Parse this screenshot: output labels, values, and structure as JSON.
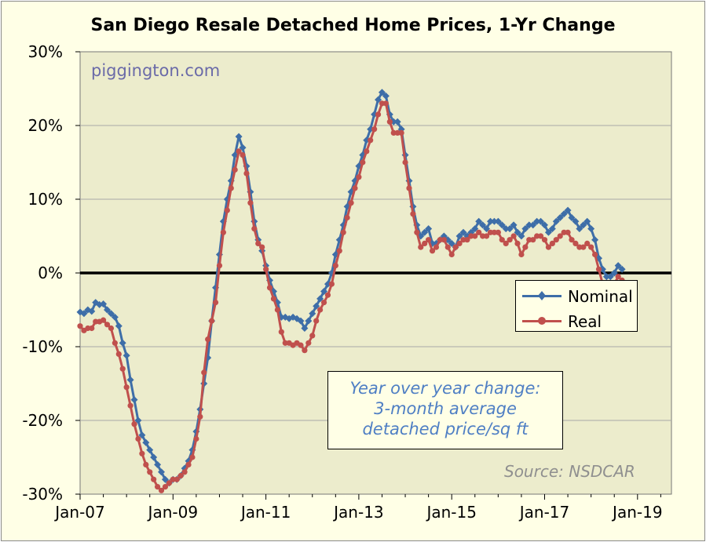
{
  "chart_data": {
    "type": "line",
    "title": "San Diego Resale Detached Home Prices, 1-Yr Change",
    "watermark": "piggington.com",
    "source": "Source: NSDCAR",
    "note_lines": [
      "Year over year change:",
      "3-month average",
      "detached price/sq ft"
    ],
    "x_ticks": [
      "Jan-07",
      "Jan-09",
      "Jan-11",
      "Jan-13",
      "Jan-15",
      "Jan-17",
      "Jan-19"
    ],
    "y_ticks": [
      "30%",
      "20%",
      "10%",
      "0%",
      "-10%",
      "-20%",
      "-30%"
    ],
    "ylim": [
      -30,
      30
    ],
    "x_start": "Jan-07",
    "x_end": "Aug-19",
    "grid": true,
    "legend_position": "right",
    "colors": {
      "nominal": "#3e6ea8",
      "real": "#c0504d",
      "zero_line": "#000000",
      "plot_bg": "#ececcc",
      "grid": "#a8a8a8"
    },
    "series": [
      {
        "name": "Nominal",
        "marker": "diamond",
        "values": [
          -5.3,
          -5.5,
          -5.0,
          -5.2,
          -4.0,
          -4.3,
          -4.2,
          -5.0,
          -5.5,
          -6.0,
          -7.2,
          -9.5,
          -11.2,
          -14.5,
          -17.2,
          -20.0,
          -22.0,
          -23.0,
          -24.0,
          -25.0,
          -26.0,
          -27.0,
          -28.0,
          -28.5,
          -28.0,
          -28.0,
          -27.5,
          -26.5,
          -25.5,
          -24.0,
          -21.5,
          -18.5,
          -15.0,
          -11.5,
          -6.5,
          -2.0,
          2.5,
          7.0,
          10.0,
          12.5,
          16.0,
          18.5,
          17.0,
          14.5,
          11.0,
          7.0,
          4.5,
          3.0,
          1.0,
          -1.0,
          -2.5,
          -4.0,
          -6.0,
          -6.0,
          -6.2,
          -6.0,
          -6.2,
          -6.5,
          -7.5,
          -6.5,
          -5.5,
          -4.5,
          -3.5,
          -2.5,
          -1.5,
          0.0,
          2.5,
          4.5,
          6.5,
          9.0,
          11.0,
          12.5,
          14.5,
          16.0,
          18.0,
          19.5,
          21.5,
          23.5,
          24.5,
          24.0,
          21.5,
          20.5,
          20.5,
          19.5,
          16.0,
          12.5,
          9.0,
          6.5,
          5.0,
          5.5,
          6.0,
          4.0,
          4.0,
          4.5,
          5.0,
          4.5,
          4.0,
          3.5,
          5.0,
          5.5,
          5.0,
          5.5,
          6.0,
          7.0,
          6.5,
          6.0,
          7.0,
          7.0,
          7.0,
          6.5,
          6.0,
          6.0,
          6.5,
          5.5,
          5.0,
          6.0,
          6.5,
          6.5,
          7.0,
          7.0,
          6.5,
          5.5,
          6.0,
          7.0,
          7.5,
          8.0,
          8.5,
          7.5,
          7.0,
          6.0,
          6.5,
          7.0,
          6.0,
          4.5,
          2.0,
          0.5,
          -0.5,
          -0.5,
          0.0,
          1.0,
          0.5
        ]
      },
      {
        "name": "Real",
        "marker": "circle",
        "values": [
          -7.2,
          -7.8,
          -7.5,
          -7.5,
          -6.6,
          -6.6,
          -6.4,
          -7.0,
          -7.5,
          -9.5,
          -11.0,
          -13.0,
          -15.5,
          -18.0,
          -20.5,
          -22.5,
          -24.5,
          -26.0,
          -27.0,
          -28.0,
          -29.0,
          -29.5,
          -29.0,
          -28.5,
          -28.0,
          -28.0,
          -27.5,
          -27.0,
          -26.0,
          -25.0,
          -22.5,
          -19.5,
          -13.5,
          -9.0,
          -6.5,
          -4.0,
          1.0,
          5.5,
          8.5,
          11.5,
          14.0,
          16.5,
          16.0,
          13.5,
          9.5,
          6.0,
          4.0,
          3.5,
          0.5,
          -2.0,
          -3.5,
          -5.0,
          -8.0,
          -9.5,
          -9.5,
          -9.8,
          -9.5,
          -9.8,
          -10.5,
          -9.5,
          -8.5,
          -6.5,
          -5.0,
          -4.0,
          -3.0,
          -1.5,
          1.0,
          3.0,
          5.5,
          7.5,
          9.5,
          11.5,
          13.0,
          15.0,
          16.5,
          18.0,
          19.5,
          21.5,
          23.0,
          23.0,
          20.5,
          19.0,
          19.0,
          19.0,
          15.0,
          11.5,
          8.0,
          5.5,
          3.5,
          4.0,
          4.5,
          3.0,
          3.5,
          4.5,
          4.5,
          3.5,
          2.5,
          3.5,
          4.0,
          4.5,
          4.5,
          5.0,
          5.0,
          5.5,
          5.0,
          5.0,
          5.5,
          5.5,
          5.5,
          4.5,
          4.0,
          4.5,
          5.0,
          4.0,
          2.5,
          3.5,
          4.5,
          4.5,
          5.0,
          5.0,
          4.5,
          3.5,
          4.0,
          4.5,
          5.0,
          5.5,
          5.5,
          4.5,
          4.0,
          3.5,
          3.5,
          4.0,
          3.5,
          2.5,
          0.5,
          -1.5,
          -2.5,
          -2.0,
          -1.5,
          -0.5,
          -1.0
        ]
      }
    ]
  }
}
